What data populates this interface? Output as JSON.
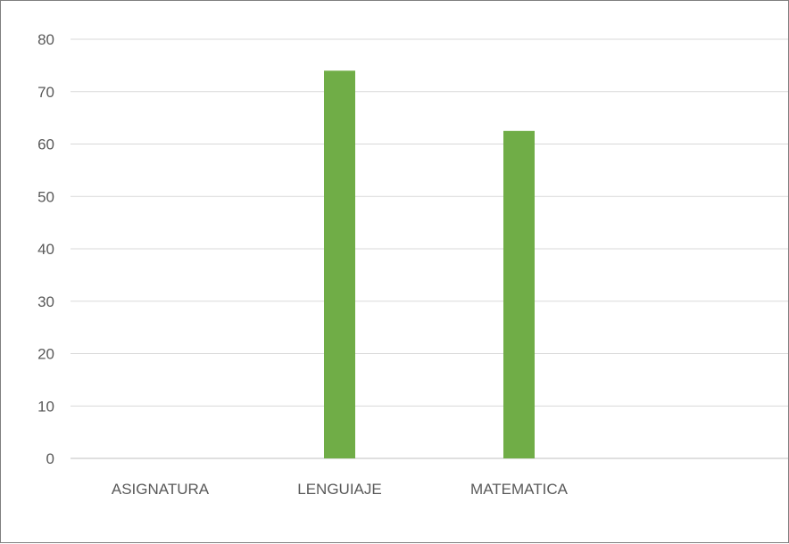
{
  "chart_data": {
    "type": "bar",
    "categories": [
      "ASIGNATURA",
      "LENGUIAJE",
      "MATEMATICA",
      ""
    ],
    "values": [
      0,
      74,
      62.5,
      0
    ],
    "ylim": [
      0,
      80
    ],
    "yticks": [
      0,
      10,
      20,
      30,
      40,
      50,
      60,
      70,
      80
    ],
    "grid": true,
    "legend": "none",
    "colors": {
      "bar": "#70ad47",
      "grid": "#d9d9d9",
      "axis": "#bfbfbf",
      "text": "#595959",
      "border": "#7f7f7f"
    }
  }
}
